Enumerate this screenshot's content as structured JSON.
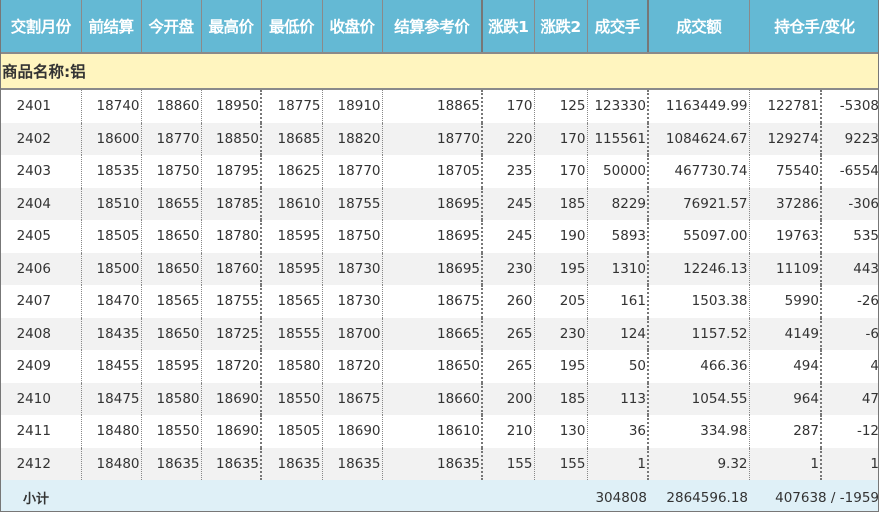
{
  "colors": {
    "header_bg": "#64b9d4",
    "product_bg": "#fff5bf",
    "subtotal_bg": "#dff0f7",
    "alt_row": "#f2f2f2"
  },
  "columns": [
    "交割月份",
    "前结算",
    "今开盘",
    "最高价",
    "最低价",
    "收盘价",
    "结算参考价",
    "涨跌1",
    "涨跌2",
    "成交手",
    "成交额",
    "持仓手/变化"
  ],
  "product_label": "商品名称:铝",
  "rows": [
    [
      "2401",
      "18740",
      "18860",
      "18950",
      "18775",
      "18910",
      "18865",
      "170",
      "125",
      "123330",
      "1163449.99",
      "122781",
      "-5308"
    ],
    [
      "2402",
      "18600",
      "18770",
      "18850",
      "18685",
      "18820",
      "18770",
      "220",
      "170",
      "115561",
      "1084624.67",
      "129274",
      "9223"
    ],
    [
      "2403",
      "18535",
      "18750",
      "18795",
      "18625",
      "18770",
      "18705",
      "235",
      "170",
      "50000",
      "467730.74",
      "75540",
      "-6554"
    ],
    [
      "2404",
      "18510",
      "18655",
      "18785",
      "18610",
      "18755",
      "18695",
      "245",
      "185",
      "8229",
      "76921.57",
      "37286",
      "-306"
    ],
    [
      "2405",
      "18505",
      "18650",
      "18780",
      "18595",
      "18750",
      "18695",
      "245",
      "190",
      "5893",
      "55097.00",
      "19763",
      "535"
    ],
    [
      "2406",
      "18500",
      "18650",
      "18760",
      "18595",
      "18730",
      "18695",
      "230",
      "195",
      "1310",
      "12246.13",
      "11109",
      "443"
    ],
    [
      "2407",
      "18470",
      "18565",
      "18755",
      "18565",
      "18730",
      "18675",
      "260",
      "205",
      "161",
      "1503.38",
      "5990",
      "-26"
    ],
    [
      "2408",
      "18435",
      "18650",
      "18725",
      "18555",
      "18700",
      "18665",
      "265",
      "230",
      "124",
      "1157.52",
      "4149",
      "-6"
    ],
    [
      "2409",
      "18455",
      "18595",
      "18720",
      "18580",
      "18720",
      "18650",
      "265",
      "195",
      "50",
      "466.36",
      "494",
      "4"
    ],
    [
      "2410",
      "18475",
      "18580",
      "18690",
      "18550",
      "18675",
      "18660",
      "200",
      "185",
      "113",
      "1054.55",
      "964",
      "47"
    ],
    [
      "2411",
      "18480",
      "18550",
      "18690",
      "18505",
      "18690",
      "18610",
      "210",
      "130",
      "36",
      "334.98",
      "287",
      "-12"
    ],
    [
      "2412",
      "18480",
      "18635",
      "18635",
      "18635",
      "18635",
      "18635",
      "155",
      "155",
      "1",
      "9.32",
      "1",
      "1"
    ]
  ],
  "subtotal": {
    "label": "小计",
    "volume": "304808",
    "turnover": "2864596.18",
    "open_interest": "407638 / -1959"
  }
}
